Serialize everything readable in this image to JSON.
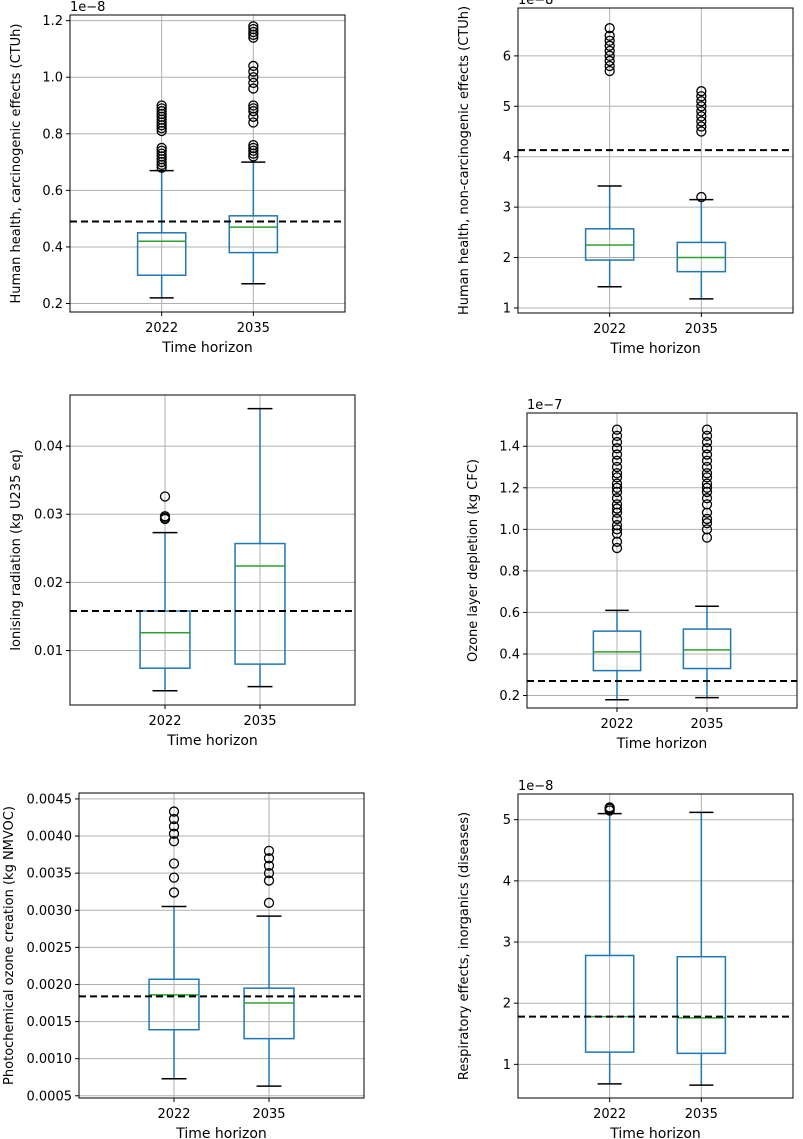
{
  "figure": {
    "style": {
      "box_color": "#1f77b4",
      "median_color": "#2ca02c",
      "whisker_color": "#1f77b4",
      "cap_color": "#000000",
      "flier_color": "#000000",
      "ref_line_color": "#000000",
      "grid_color": "#b0b0b0"
    }
  },
  "chart_data": [
    {
      "type": "box",
      "xlabel": "Time horizon",
      "ylabel": "Human health, carcinogenic effects (CTUh)",
      "offset_text": "1e−8",
      "ylim": [
        0.17,
        1.22
      ],
      "yticks": [
        0.2,
        0.4,
        0.6,
        0.8,
        1.0,
        1.2
      ],
      "ytick_labels": [
        "0.2",
        "0.4",
        "0.6",
        "0.8",
        "1.0",
        "1.2"
      ],
      "categories": [
        "2022",
        "2035"
      ],
      "reference_line": 0.49,
      "boxes": [
        {
          "whislo": 0.22,
          "q1": 0.3,
          "med": 0.42,
          "q3": 0.45,
          "whishi": 0.67,
          "fliers": [
            0.68,
            0.69,
            0.7,
            0.71,
            0.72,
            0.73,
            0.74,
            0.75,
            0.81,
            0.82,
            0.83,
            0.84,
            0.85,
            0.86,
            0.87,
            0.88,
            0.89,
            0.9
          ]
        },
        {
          "whislo": 0.27,
          "q1": 0.38,
          "med": 0.47,
          "q3": 0.51,
          "whishi": 0.7,
          "fliers": [
            0.72,
            0.73,
            0.74,
            0.75,
            0.76,
            0.84,
            0.86,
            0.88,
            0.89,
            0.9,
            0.96,
            0.98,
            1.0,
            1.02,
            1.04,
            1.14,
            1.15,
            1.16,
            1.17,
            1.18
          ]
        }
      ]
    },
    {
      "type": "box",
      "xlabel": "Time horizon",
      "ylabel": "Human health, non-carcinogenic effects (CTUh)",
      "offset_text": "1e−8",
      "ylim": [
        0.9,
        6.95
      ],
      "yticks": [
        1,
        2,
        3,
        4,
        5,
        6
      ],
      "ytick_labels": [
        "1",
        "2",
        "3",
        "4",
        "5",
        "6"
      ],
      "categories": [
        "2022",
        "2035"
      ],
      "reference_line": 4.13,
      "boxes": [
        {
          "whislo": 1.42,
          "q1": 1.95,
          "med": 2.25,
          "q3": 2.57,
          "whishi": 3.42,
          "fliers": [
            5.7,
            5.8,
            5.9,
            6.0,
            6.1,
            6.2,
            6.3,
            6.4,
            6.55
          ]
        },
        {
          "whislo": 1.18,
          "q1": 1.72,
          "med": 2.0,
          "q3": 2.3,
          "whishi": 3.15,
          "fliers": [
            3.2,
            4.5,
            4.6,
            4.7,
            4.8,
            4.9,
            5.0,
            5.1,
            5.2,
            5.3
          ]
        }
      ]
    },
    {
      "type": "box",
      "xlabel": "Time horizon",
      "ylabel": "Ionising radiation (kg U235 eq)",
      "offset_text": "",
      "ylim": [
        0.002,
        0.0475
      ],
      "yticks": [
        0.01,
        0.02,
        0.03,
        0.04
      ],
      "ytick_labels": [
        "0.01",
        "0.02",
        "0.03",
        "0.04"
      ],
      "categories": [
        "2022",
        "2035"
      ],
      "reference_line": 0.0158,
      "boxes": [
        {
          "whislo": 0.0041,
          "q1": 0.0074,
          "med": 0.0126,
          "q3": 0.0158,
          "whishi": 0.0273,
          "fliers": [
            0.0293,
            0.0295,
            0.0297,
            0.0326
          ]
        },
        {
          "whislo": 0.0047,
          "q1": 0.008,
          "med": 0.0224,
          "q3": 0.0257,
          "whishi": 0.0455,
          "fliers": []
        }
      ]
    },
    {
      "type": "box",
      "xlabel": "Time horizon",
      "ylabel": "Ozone layer depletion (kg CFC)",
      "offset_text": "1e−7",
      "ylim": [
        0.14,
        1.56
      ],
      "yticks": [
        0.2,
        0.4,
        0.6,
        0.8,
        1.0,
        1.2,
        1.4
      ],
      "ytick_labels": [
        "0.2",
        "0.4",
        "0.6",
        "0.8",
        "1.0",
        "1.2",
        "1.4"
      ],
      "categories": [
        "2022",
        "2035"
      ],
      "reference_line": 0.27,
      "boxes": [
        {
          "whislo": 0.18,
          "q1": 0.32,
          "med": 0.41,
          "q3": 0.51,
          "whishi": 0.61,
          "fliers": [
            0.91,
            0.94,
            0.98,
            1.0,
            1.02,
            1.05,
            1.08,
            1.1,
            1.12,
            1.15,
            1.18,
            1.2,
            1.22,
            1.25,
            1.27,
            1.3,
            1.33,
            1.36,
            1.39,
            1.42,
            1.45,
            1.48
          ]
        },
        {
          "whislo": 0.19,
          "q1": 0.33,
          "med": 0.42,
          "q3": 0.52,
          "whishi": 0.63,
          "fliers": [
            0.96,
            1.0,
            1.03,
            1.05,
            1.08,
            1.12,
            1.15,
            1.18,
            1.2,
            1.22,
            1.25,
            1.27,
            1.3,
            1.33,
            1.36,
            1.39,
            1.42,
            1.45,
            1.48
          ]
        }
      ]
    },
    {
      "type": "box",
      "xlabel": "Time horizon",
      "ylabel": "Photochemical ozone creation (kg NMVOC)",
      "offset_text": "",
      "ylim": [
        0.00047,
        0.00458
      ],
      "yticks": [
        0.0005,
        0.001,
        0.0015,
        0.002,
        0.0025,
        0.003,
        0.0035,
        0.004,
        0.0045
      ],
      "ytick_labels": [
        "0.0005",
        "0.0010",
        "0.0015",
        "0.0020",
        "0.0025",
        "0.0030",
        "0.0035",
        "0.0040",
        "0.0045"
      ],
      "categories": [
        "2022",
        "2035"
      ],
      "reference_line": 0.00184,
      "boxes": [
        {
          "whislo": 0.00073,
          "q1": 0.00139,
          "med": 0.00186,
          "q3": 0.00207,
          "whishi": 0.00305,
          "fliers": [
            0.00324,
            0.00344,
            0.00363,
            0.00393,
            0.00403,
            0.00413,
            0.00423,
            0.00433
          ]
        },
        {
          "whislo": 0.00063,
          "q1": 0.00127,
          "med": 0.00175,
          "q3": 0.00195,
          "whishi": 0.00292,
          "fliers": [
            0.0031,
            0.0034,
            0.0035,
            0.0036,
            0.0037,
            0.0038
          ]
        }
      ]
    },
    {
      "type": "box",
      "xlabel": "Time horizon",
      "ylabel": "Respiratory effects, inorganics (diseases)",
      "offset_text": "1e−8",
      "ylim": [
        0.45,
        5.42
      ],
      "yticks": [
        1,
        2,
        3,
        4,
        5
      ],
      "ytick_labels": [
        "1",
        "2",
        "3",
        "4",
        "5"
      ],
      "categories": [
        "2022",
        "2035"
      ],
      "reference_line": 1.78,
      "boxes": [
        {
          "whislo": 0.68,
          "q1": 1.2,
          "med": 1.78,
          "q3": 2.78,
          "whishi": 5.1,
          "fliers": [
            5.15,
            5.18,
            5.2
          ]
        },
        {
          "whislo": 0.66,
          "q1": 1.18,
          "med": 1.76,
          "q3": 2.76,
          "whishi": 5.12,
          "fliers": []
        }
      ]
    }
  ]
}
